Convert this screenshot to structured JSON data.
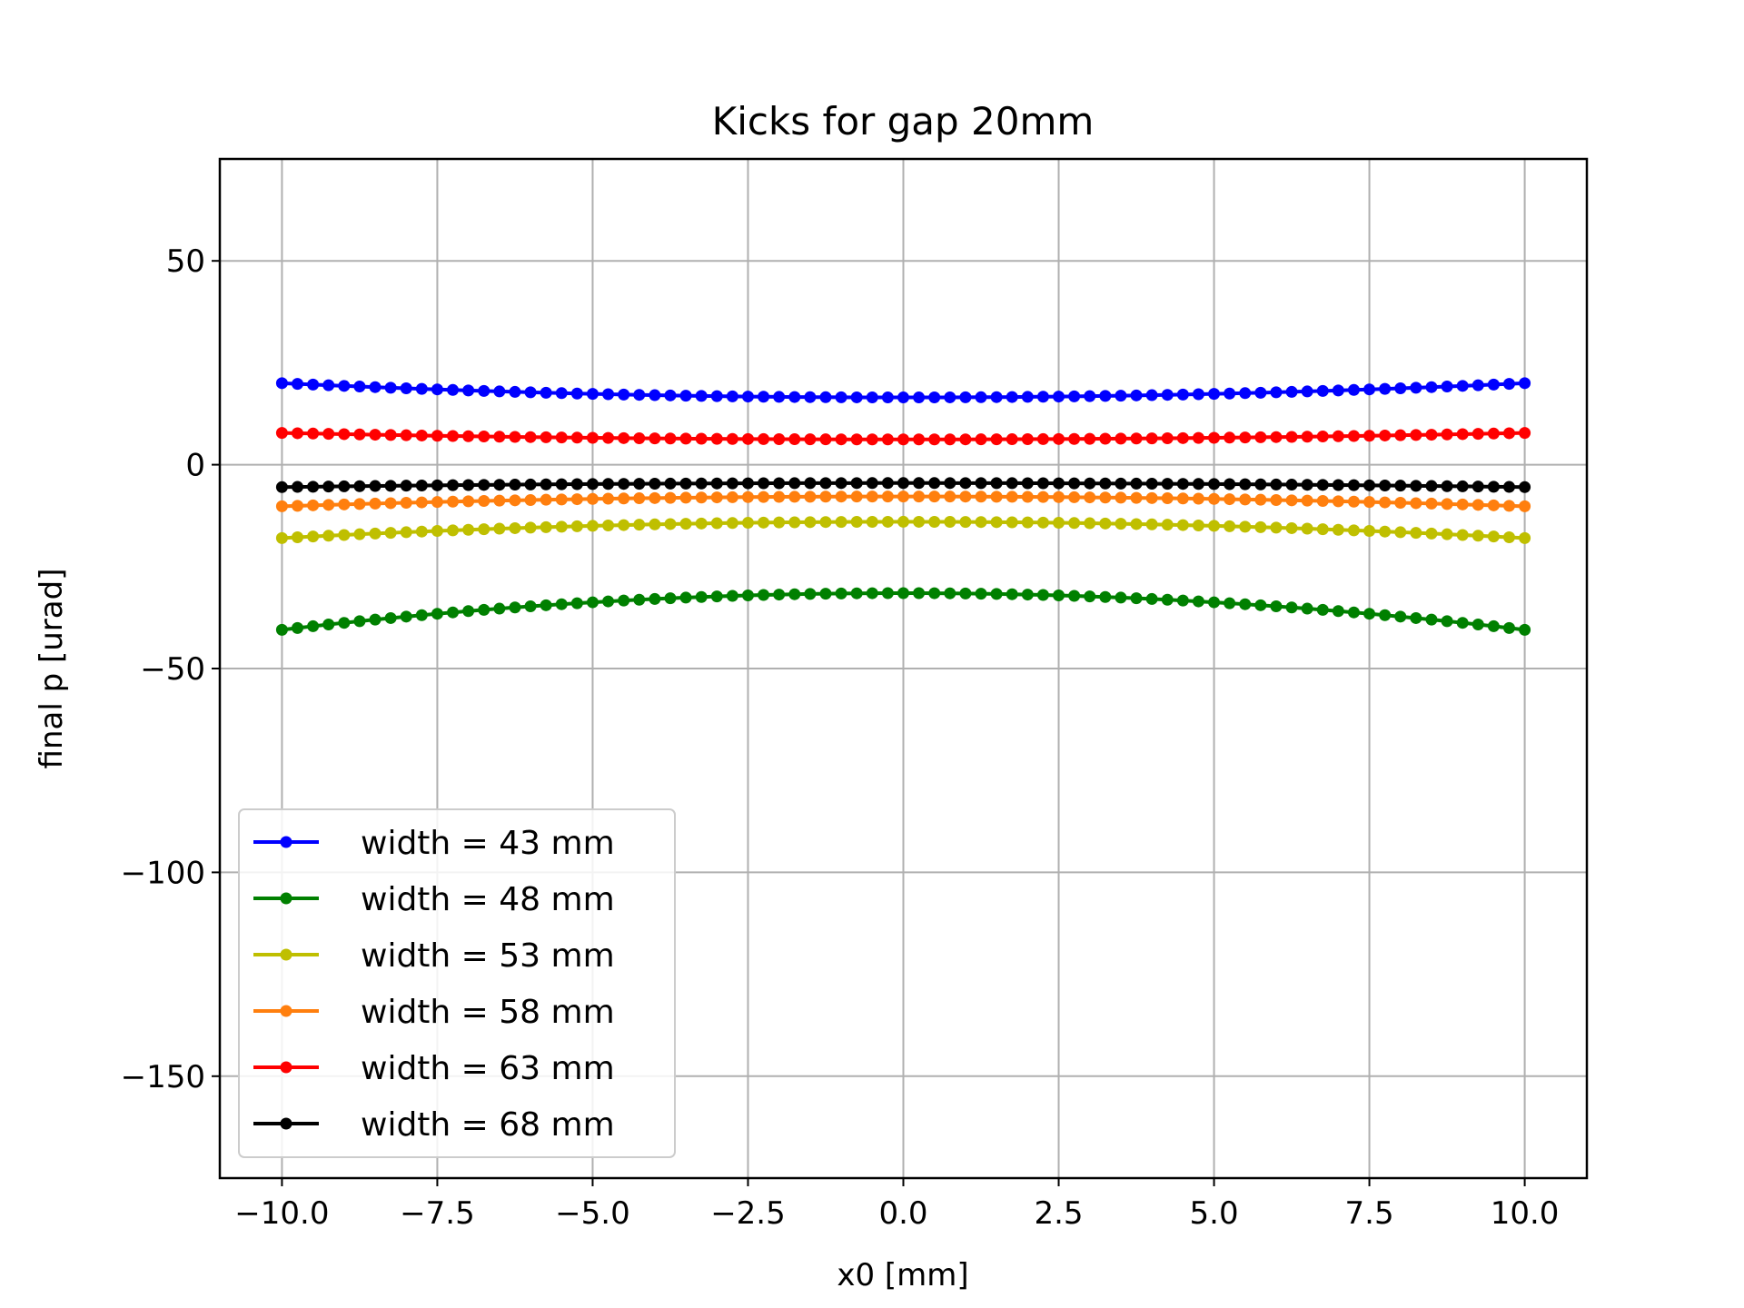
{
  "chart_data": {
    "type": "line",
    "title": "Kicks for gap 20mm",
    "xlabel": "x0 [mm]",
    "ylabel": "final p [urad]",
    "xlim": [
      -11,
      11
    ],
    "ylim": [
      -175,
      75
    ],
    "xticks": [
      -10.0,
      -7.5,
      -5.0,
      -2.5,
      0.0,
      2.5,
      5.0,
      7.5,
      10.0
    ],
    "xtick_labels": [
      "−10.0",
      "−7.5",
      "−5.0",
      "−2.5",
      "0.0",
      "2.5",
      "5.0",
      "7.5",
      "10.0"
    ],
    "yticks": [
      50,
      0,
      -50,
      -100,
      -150
    ],
    "ytick_labels": [
      "50",
      "0",
      "−50",
      "−100",
      "−150"
    ],
    "grid": true,
    "legend_position": "lower-left",
    "markers_per_series": 81,
    "x_range": [
      -10,
      10
    ],
    "series": [
      {
        "name": "width = 43 mm",
        "color": "#0000ff",
        "center": 16.5,
        "edge": 20.0
      },
      {
        "name": "width = 48 mm",
        "color": "#008000",
        "center": -31.5,
        "edge": -40.5
      },
      {
        "name": "width = 53 mm",
        "color": "#bfbf00",
        "center": -14.0,
        "edge": -18.0
      },
      {
        "name": "width = 58 mm",
        "color": "#ff7f0e",
        "center": -7.8,
        "edge": -10.2
      },
      {
        "name": "width = 63 mm",
        "color": "#ff0000",
        "center": 6.2,
        "edge": 7.8
      },
      {
        "name": "width = 68 mm",
        "color": "#000000",
        "center": -4.5,
        "edge": -5.5
      }
    ]
  }
}
